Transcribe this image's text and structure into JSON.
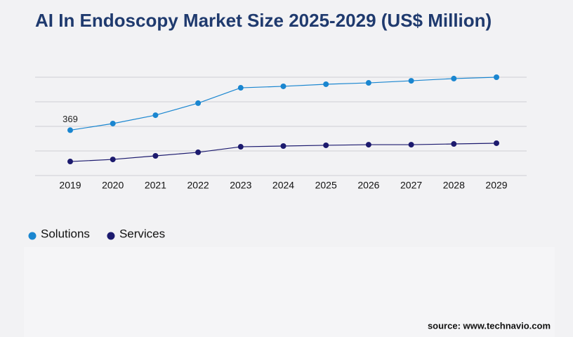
{
  "chart_data": {
    "type": "line",
    "title": "AI In Endoscopy Market Size 2025-2029 (US$ Million)",
    "categories": [
      "2019",
      "2020",
      "2021",
      "2022",
      "2023",
      "2024",
      "2025",
      "2026",
      "2027",
      "2028",
      "2029"
    ],
    "series": [
      {
        "name": "Solutions",
        "color": "#1a86d0",
        "values": [
          369,
          423,
          491,
          589,
          714,
          726,
          743,
          754,
          771,
          789,
          800
        ]
      },
      {
        "name": "Services",
        "color": "#1c1a6e",
        "values": [
          114,
          131,
          160,
          189,
          234,
          240,
          246,
          251,
          251,
          257,
          263
        ]
      }
    ],
    "ylim": [
      0,
      800
    ],
    "gridlines": [
      0,
      200,
      400,
      600,
      800
    ],
    "source": "source: www.technavio.com"
  }
}
